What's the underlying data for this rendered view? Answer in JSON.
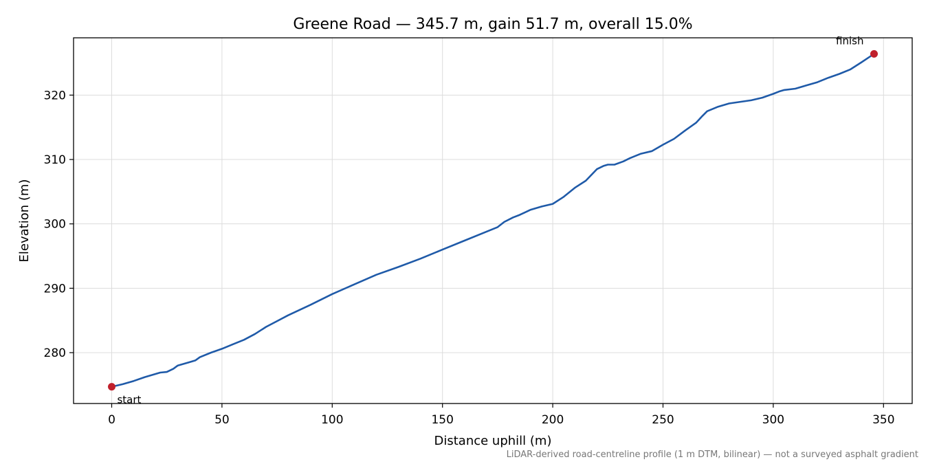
{
  "chart_data": {
    "type": "line",
    "title": "Greene Road — 345.7 m, gain 51.7 m, overall 15.0%",
    "xlabel": "Distance uphill (m)",
    "ylabel": "Elevation (m)",
    "xlim": [
      -17.3,
      363.0
    ],
    "ylim": [
      272.1,
      328.9
    ],
    "xticks": [
      0,
      50,
      100,
      150,
      200,
      250,
      300,
      350
    ],
    "yticks": [
      280,
      290,
      300,
      310,
      320
    ],
    "grid": true,
    "line_color": "#1f5aa8",
    "marker_color": "#c0202c",
    "series": [
      {
        "x": [
          0,
          5,
          10,
          15,
          20,
          22,
          25,
          28,
          30,
          35,
          38,
          40,
          45,
          50,
          55,
          60,
          65,
          70,
          75,
          80,
          90,
          100,
          110,
          120,
          130,
          140,
          150,
          160,
          170,
          175,
          178,
          182,
          185,
          190,
          195,
          200,
          205,
          210,
          215,
          220,
          223,
          225,
          228,
          232,
          235,
          240,
          245,
          250,
          255,
          260,
          265,
          268,
          270,
          275,
          280,
          290,
          295,
          300,
          303,
          305,
          310,
          315,
          320,
          325,
          330,
          335,
          340,
          345.7
        ],
        "y": [
          274.7,
          275.1,
          275.6,
          276.2,
          276.7,
          276.9,
          277.0,
          277.5,
          278.0,
          278.5,
          278.8,
          279.3,
          280.0,
          280.6,
          281.3,
          282.0,
          282.9,
          284.0,
          284.9,
          285.8,
          287.4,
          289.1,
          290.6,
          292.1,
          293.3,
          294.6,
          296.0,
          297.4,
          298.8,
          299.5,
          300.3,
          301.0,
          301.4,
          302.2,
          302.7,
          303.1,
          304.2,
          305.6,
          306.7,
          308.5,
          309.0,
          309.2,
          309.2,
          309.7,
          310.2,
          310.9,
          311.3,
          312.3,
          313.2,
          314.5,
          315.7,
          316.8,
          317.5,
          318.2,
          318.7,
          319.2,
          319.6,
          320.2,
          320.6,
          320.8,
          321.0,
          321.5,
          322.0,
          322.7,
          323.3,
          324.0,
          325.1,
          326.4
        ]
      }
    ],
    "annotations": [
      {
        "text": "start",
        "x": 0,
        "y": 274.7
      },
      {
        "text": "finish",
        "x": 345.7,
        "y": 326.4
      }
    ],
    "footnote": "LiDAR-derived road-centreline profile (1 m DTM, bilinear) — not a surveyed asphalt gradient"
  }
}
